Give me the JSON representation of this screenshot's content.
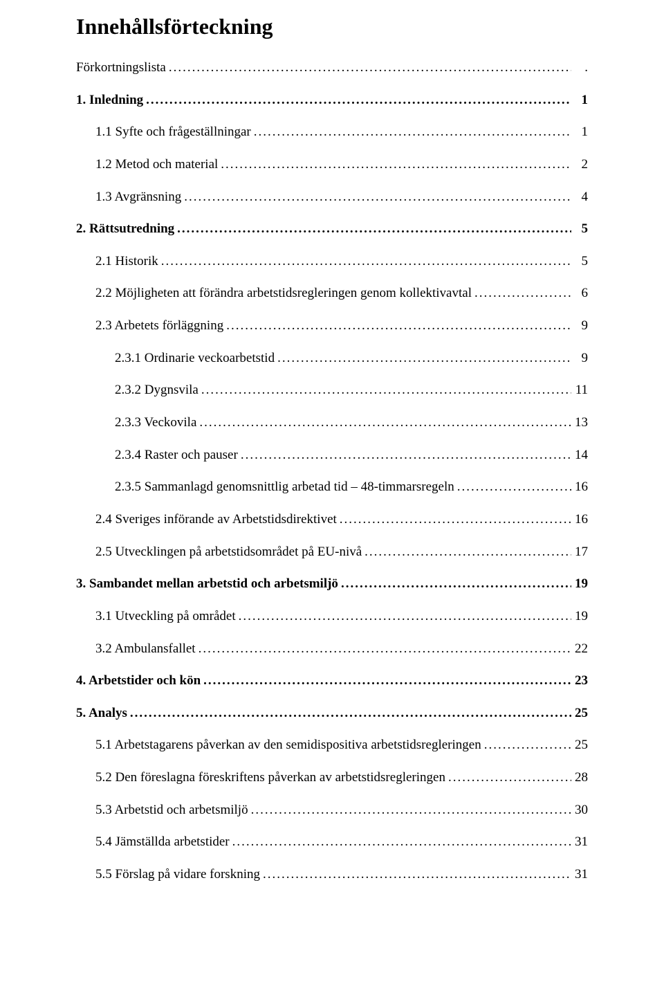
{
  "title": "Innehållsförteckning",
  "entries": [
    {
      "label": "Förkortningslista",
      "page": ".",
      "bold": false,
      "indent": 0
    },
    {
      "label": "1.   Inledning",
      "page": "1",
      "bold": true,
      "indent": 0
    },
    {
      "label": "1.1 Syfte och frågeställningar",
      "page": "1",
      "bold": false,
      "indent": 1
    },
    {
      "label": "1.2 Metod och material",
      "page": "2",
      "bold": false,
      "indent": 1
    },
    {
      "label": "1.3 Avgränsning",
      "page": "4",
      "bold": false,
      "indent": 1
    },
    {
      "label": "2.   Rättsutredning",
      "page": "5",
      "bold": true,
      "indent": 0
    },
    {
      "label": "2.1 Historik",
      "page": "5",
      "bold": false,
      "indent": 1
    },
    {
      "label": "2.2 Möjligheten att förändra arbetstidsregleringen genom kollektivavtal",
      "page": "6",
      "bold": false,
      "indent": 1
    },
    {
      "label": "2.3 Arbetets förläggning",
      "page": "9",
      "bold": false,
      "indent": 1
    },
    {
      "label": "2.3.1 Ordinarie veckoarbetstid",
      "page": "9",
      "bold": false,
      "indent": 2
    },
    {
      "label": "2.3.2 Dygnsvila",
      "page": "11",
      "bold": false,
      "indent": 2
    },
    {
      "label": "2.3.3 Veckovila",
      "page": "13",
      "bold": false,
      "indent": 2
    },
    {
      "label": "2.3.4 Raster och pauser",
      "page": "14",
      "bold": false,
      "indent": 2
    },
    {
      "label": "2.3.5 Sammanlagd genomsnittlig arbetad tid – 48-timmarsregeln",
      "page": "16",
      "bold": false,
      "indent": 2
    },
    {
      "label": "2.4 Sveriges införande av Arbetstidsdirektivet",
      "page": "16",
      "bold": false,
      "indent": 1
    },
    {
      "label": "2.5 Utvecklingen på arbetstidsområdet på EU-nivå",
      "page": "17",
      "bold": false,
      "indent": 1
    },
    {
      "label": "3.   Sambandet mellan arbetstid och arbetsmiljö",
      "page": "19",
      "bold": true,
      "indent": 0
    },
    {
      "label": "3.1 Utveckling på området",
      "page": "19",
      "bold": false,
      "indent": 1
    },
    {
      "label": "3.2 Ambulansfallet",
      "page": "22",
      "bold": false,
      "indent": 1
    },
    {
      "label": "4.   Arbetstider och kön",
      "page": "23",
      "bold": true,
      "indent": 0
    },
    {
      "label": "5.   Analys",
      "page": "25",
      "bold": true,
      "indent": 0
    },
    {
      "label": "5.1 Arbetstagarens påverkan av den semidispositiva arbetstidsregleringen",
      "page": "25",
      "bold": false,
      "indent": 1
    },
    {
      "label": "5.2 Den föreslagna föreskriftens påverkan av arbetstidsregleringen",
      "page": "28",
      "bold": false,
      "indent": 1
    },
    {
      "label": "5.3 Arbetstid och arbetsmiljö",
      "page": "30",
      "bold": false,
      "indent": 1
    },
    {
      "label": "5.4 Jämställda arbetstider",
      "page": "31",
      "bold": false,
      "indent": 1
    },
    {
      "label": "5.5 Förslag på vidare forskning",
      "page": "31",
      "bold": false,
      "indent": 1
    }
  ]
}
